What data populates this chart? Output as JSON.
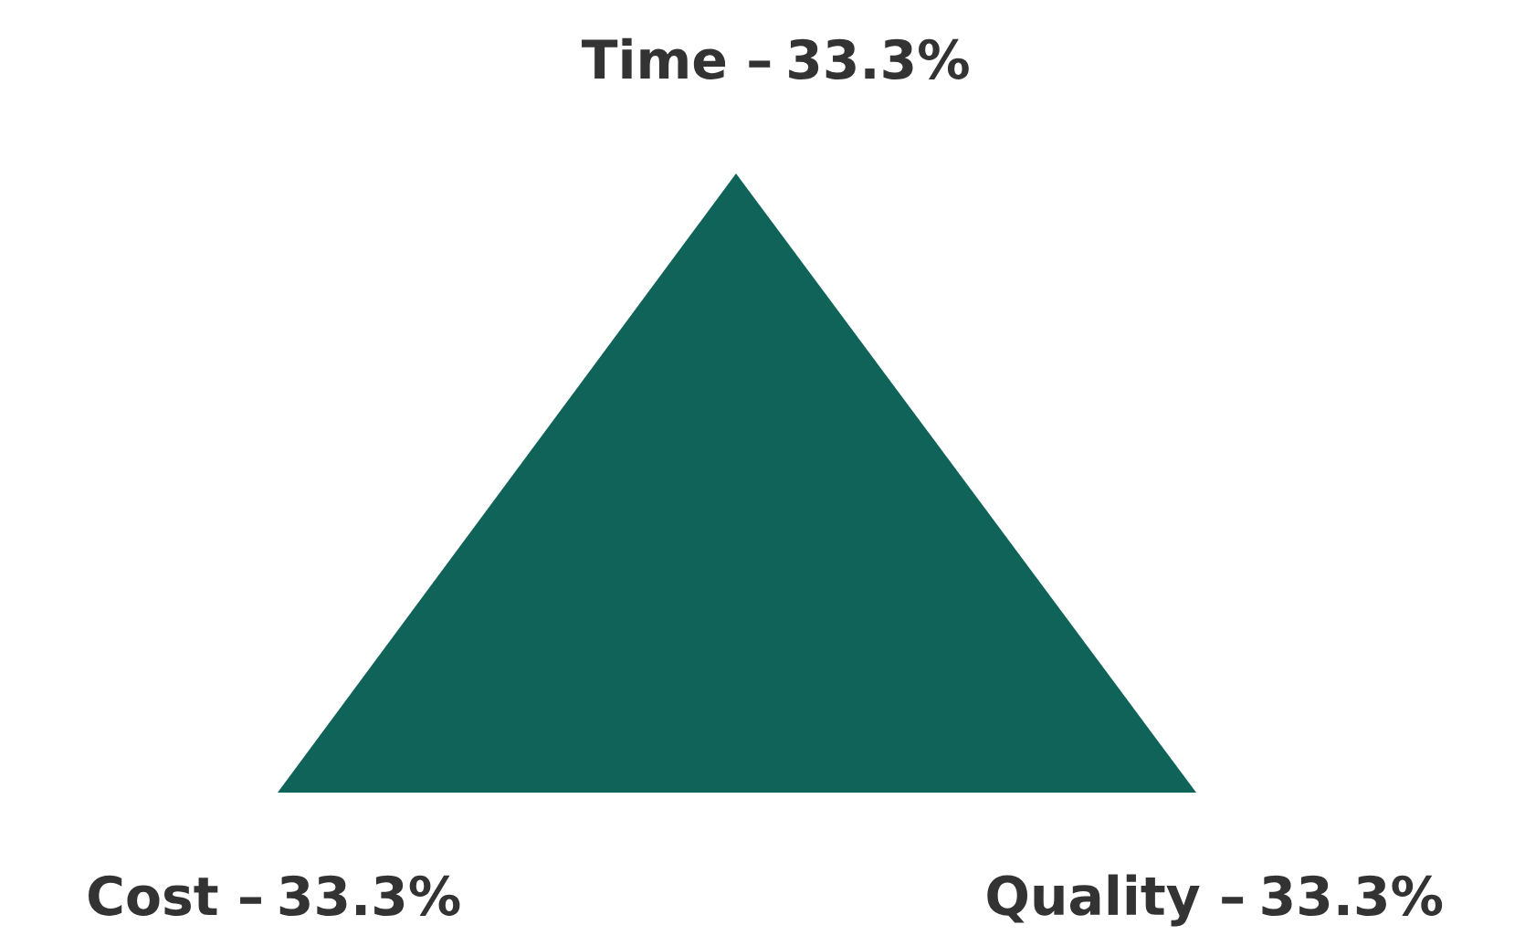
{
  "chart_data": {
    "type": "other",
    "categories": [
      "Time –",
      "Quality –",
      "Cost –"
    ],
    "values": [
      33.3,
      33.3,
      33.3
    ],
    "value_labels": [
      "33.3%",
      "33.3%",
      "33.3%"
    ]
  }
}
